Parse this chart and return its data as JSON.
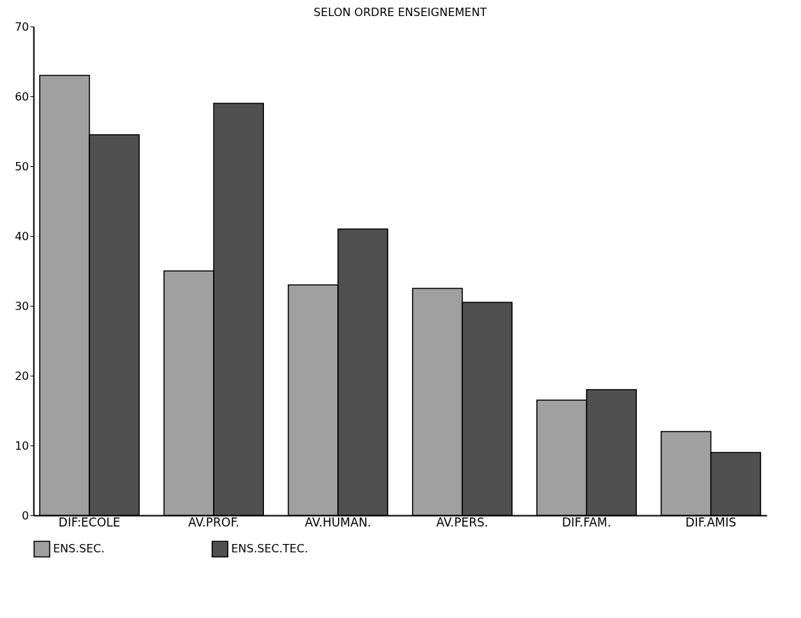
{
  "chart_data": {
    "type": "bar",
    "title": "SELON ORDRE ENSEIGNEMENT",
    "categories": [
      "DIF:ECOLE",
      "AV.PROF.",
      "AV.HUMAN.",
      "AV.PERS.",
      "DIF.FAM.",
      "DIF.AMIS"
    ],
    "series": [
      {
        "name": "ENS.SEC.",
        "color": "#a0a0a0",
        "values": [
          63,
          35,
          33,
          32.5,
          16.5,
          12
        ]
      },
      {
        "name": "ENS.SEC.TEC.",
        "color": "#505050",
        "values": [
          54.5,
          59,
          41,
          30.5,
          18,
          9
        ]
      }
    ],
    "ylim": [
      0,
      70
    ],
    "yticks": [
      0,
      10,
      20,
      30,
      40,
      50,
      60,
      70
    ],
    "grid": false,
    "legend": "bottom"
  }
}
